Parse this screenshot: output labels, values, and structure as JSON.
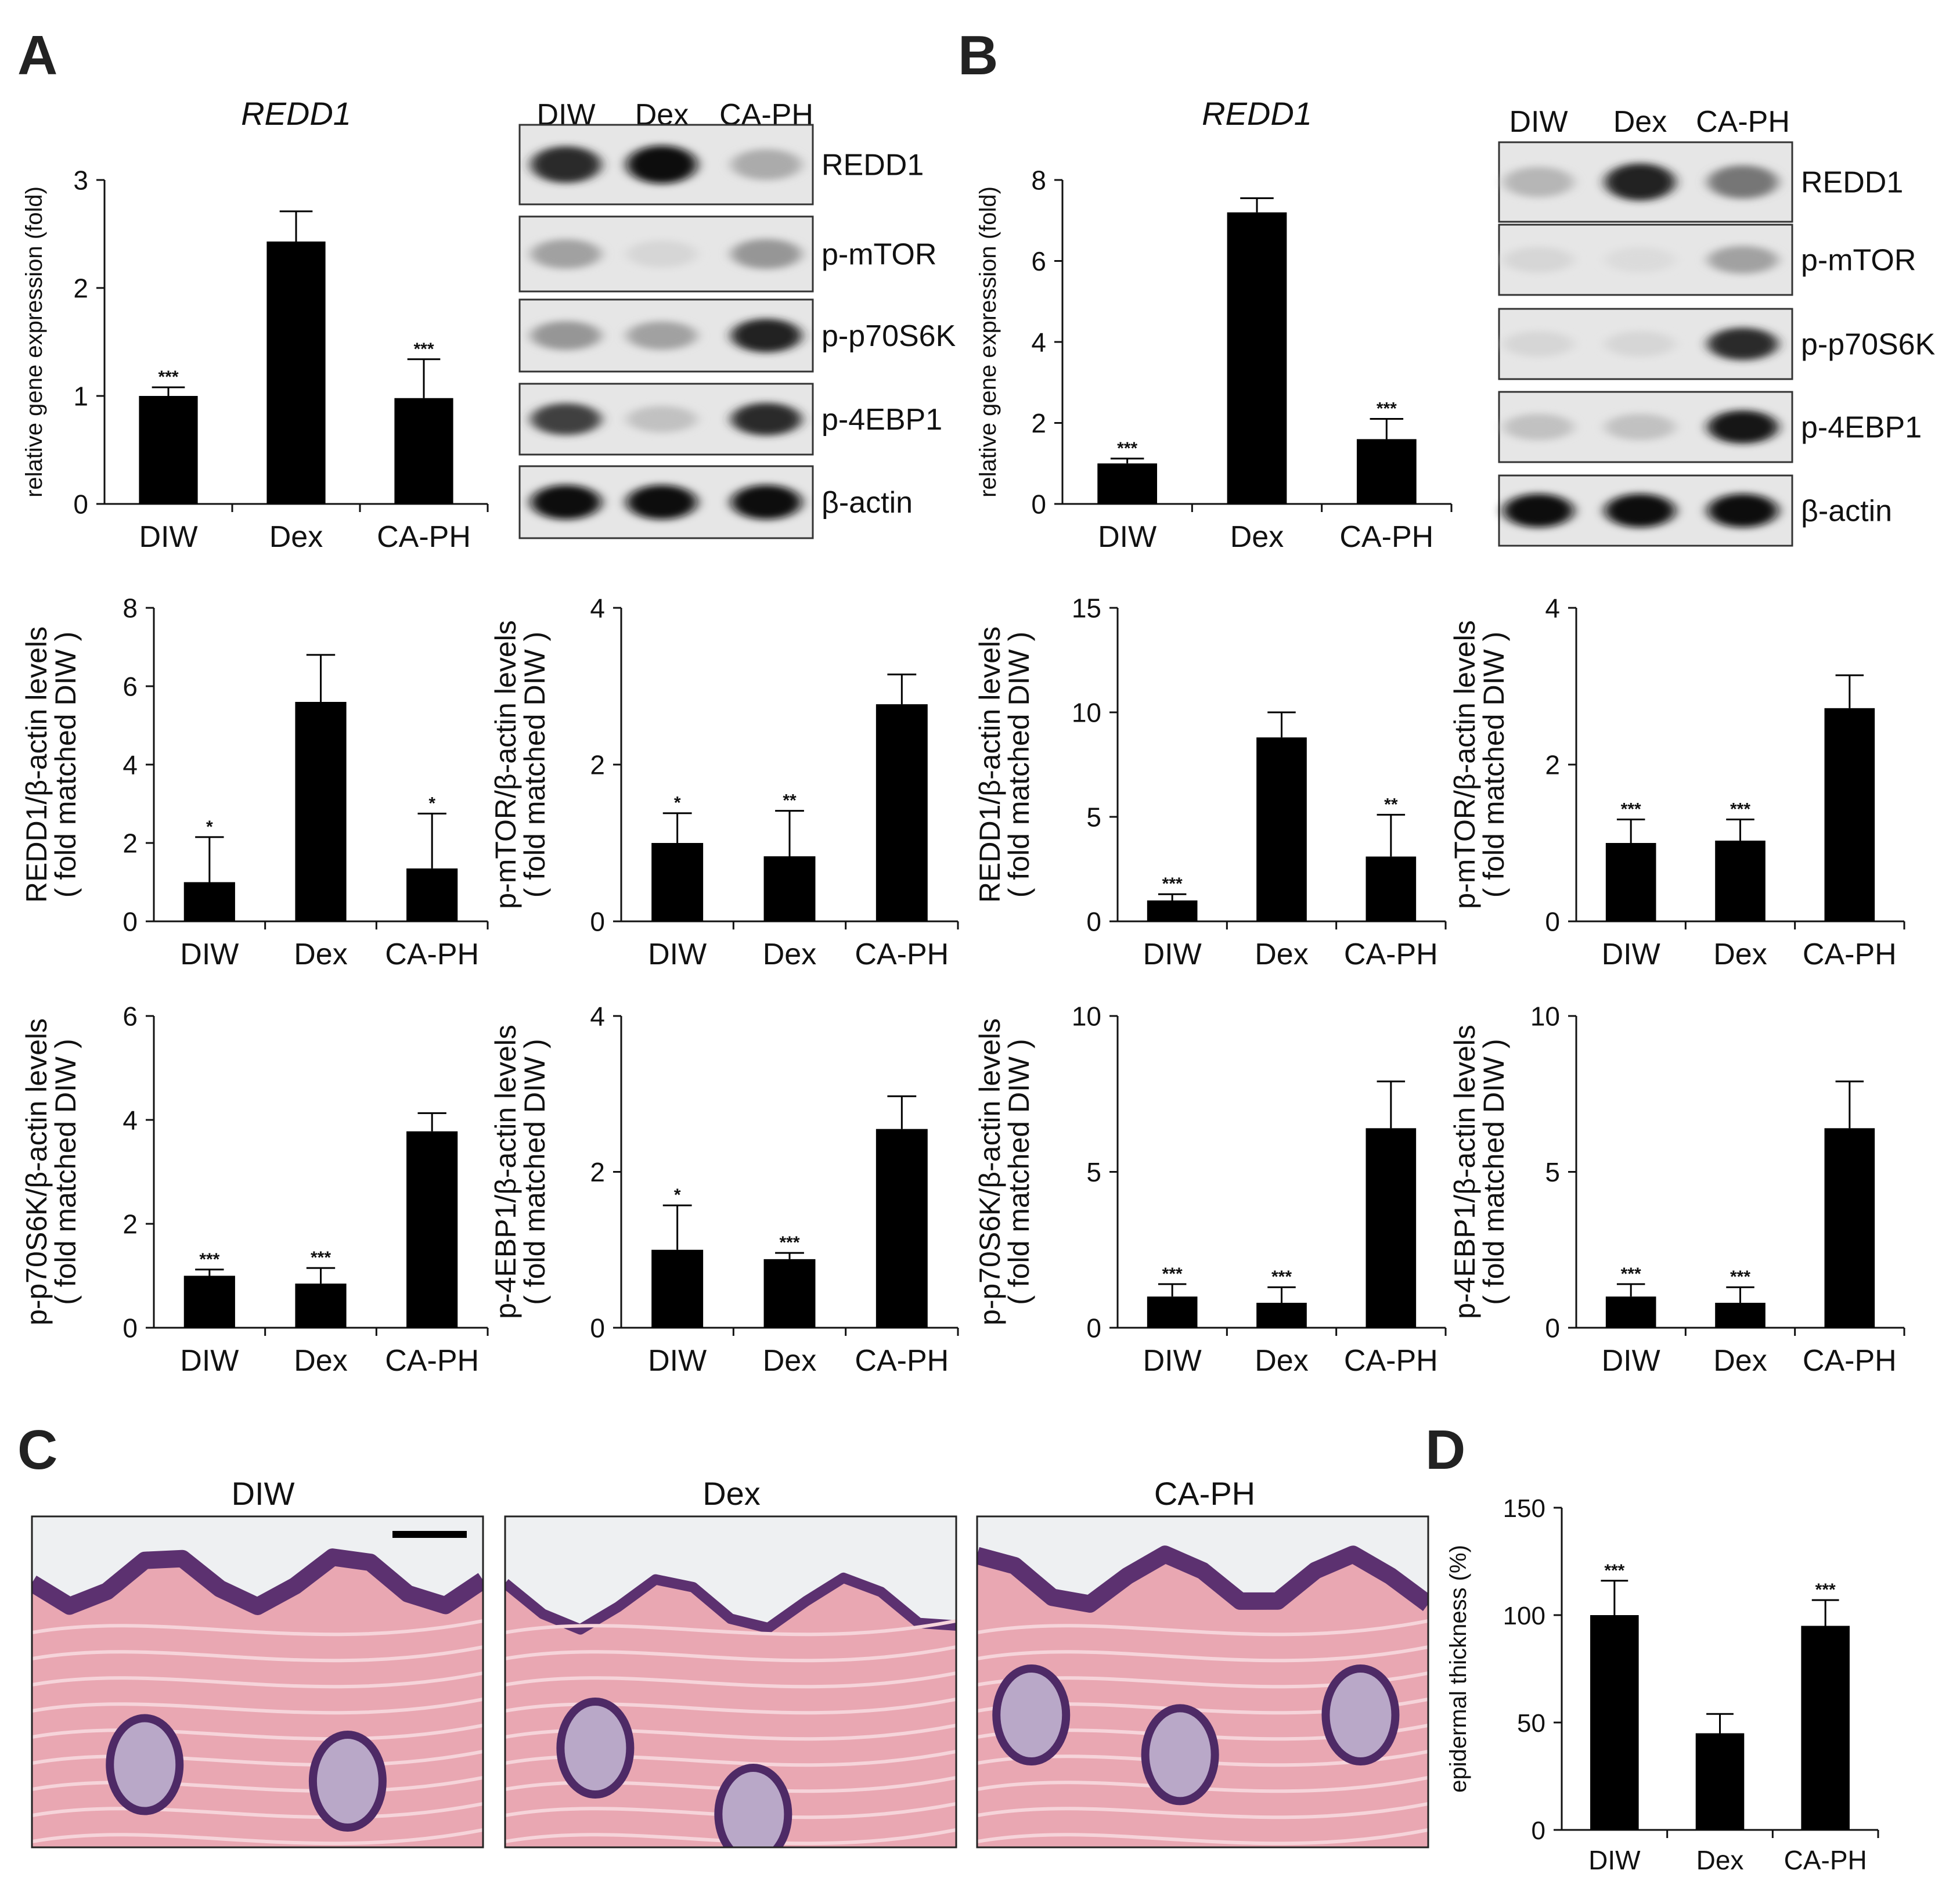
{
  "panel_labels": {
    "a": "A",
    "b": "B",
    "c": "C",
    "d": "D"
  },
  "blot_lanes": [
    "DIW",
    "Dex",
    "CA-PH"
  ],
  "blot_rows": [
    "REDD1",
    "p-mTOR",
    "p-p70S6K",
    "p-4EBP1",
    "β-actin"
  ],
  "blots": {
    "A": [
      [
        0.85,
        1.0,
        0.25
      ],
      [
        0.3,
        0.05,
        0.35
      ],
      [
        0.35,
        0.3,
        0.9
      ],
      [
        0.75,
        0.15,
        0.85
      ],
      [
        1.0,
        1.0,
        1.0
      ]
    ],
    "B": [
      [
        0.2,
        0.9,
        0.5
      ],
      [
        0.05,
        0.03,
        0.3
      ],
      [
        0.05,
        0.05,
        0.85
      ],
      [
        0.15,
        0.15,
        0.95
      ],
      [
        1.0,
        1.0,
        1.0
      ]
    ]
  },
  "histology": {
    "titles": [
      "DIW",
      "Dex",
      "CA-PH"
    ]
  },
  "chart_data": [
    {
      "id": "A-redd1-mrna",
      "type": "bar",
      "title": "REDD1",
      "ylabel": "relative gene expression (fold)",
      "ylabel2": "",
      "categories": [
        "DIW",
        "Dex",
        "CA-PH"
      ],
      "values": [
        1.0,
        2.43,
        0.98
      ],
      "errors": [
        0.08,
        0.28,
        0.36
      ],
      "sig": [
        "***",
        "",
        "***"
      ],
      "ylim": [
        0,
        3
      ],
      "ticks": [
        0,
        1,
        2,
        3
      ]
    },
    {
      "id": "B-redd1-mrna",
      "type": "bar",
      "title": "REDD1",
      "ylabel": "relative gene expression (fold)",
      "ylabel2": "",
      "categories": [
        "DIW",
        "Dex",
        "CA-PH"
      ],
      "values": [
        1.0,
        7.2,
        1.6
      ],
      "errors": [
        0.12,
        0.35,
        0.5
      ],
      "sig": [
        "***",
        "",
        "***"
      ],
      "ylim": [
        0,
        8
      ],
      "ticks": [
        0,
        2,
        4,
        6,
        8
      ]
    },
    {
      "id": "A-redd1-actin",
      "type": "bar",
      "title": "",
      "ylabel": "REDD1/β-actin levels",
      "ylabel2": "( fold matched DIW )",
      "categories": [
        "DIW",
        "Dex",
        "CA-PH"
      ],
      "values": [
        1.0,
        5.6,
        1.35
      ],
      "errors": [
        1.15,
        1.2,
        1.4
      ],
      "sig": [
        "*",
        "",
        "*"
      ],
      "ylim": [
        0,
        8
      ],
      "ticks": [
        0,
        2,
        4,
        6,
        8
      ]
    },
    {
      "id": "A-mtor-actin",
      "type": "bar",
      "title": "",
      "ylabel": "p-mTOR/β-actin levels",
      "ylabel2": "( fold matched DIW )",
      "categories": [
        "DIW",
        "Dex",
        "CA-PH"
      ],
      "values": [
        1.0,
        0.83,
        2.77
      ],
      "errors": [
        0.38,
        0.58,
        0.38
      ],
      "sig": [
        "*",
        "**",
        ""
      ],
      "ylim": [
        0,
        4
      ],
      "ticks": [
        0,
        2,
        4
      ]
    },
    {
      "id": "B-redd1-actin",
      "type": "bar",
      "title": "",
      "ylabel": "REDD1/β-actin levels",
      "ylabel2": "( fold matched DIW )",
      "categories": [
        "DIW",
        "Dex",
        "CA-PH"
      ],
      "values": [
        1.0,
        8.8,
        3.1
      ],
      "errors": [
        0.3,
        1.2,
        2.0
      ],
      "sig": [
        "***",
        "",
        "**"
      ],
      "ylim": [
        0,
        15
      ],
      "ticks": [
        0,
        5,
        10,
        15
      ]
    },
    {
      "id": "B-mtor-actin",
      "type": "bar",
      "title": "",
      "ylabel": "p-mTOR/β-actin levels",
      "ylabel2": "( fold matched DIW )",
      "categories": [
        "DIW",
        "Dex",
        "CA-PH"
      ],
      "values": [
        1.0,
        1.03,
        2.72
      ],
      "errors": [
        0.3,
        0.27,
        0.42
      ],
      "sig": [
        "***",
        "***",
        ""
      ],
      "ylim": [
        0,
        4
      ],
      "ticks": [
        0,
        2,
        4
      ]
    },
    {
      "id": "A-p70-actin",
      "type": "bar",
      "title": "",
      "ylabel": "p-p70S6K/β-actin levels",
      "ylabel2": "( fold matched DIW )",
      "categories": [
        "DIW",
        "Dex",
        "CA-PH"
      ],
      "values": [
        1.0,
        0.85,
        3.78
      ],
      "errors": [
        0.12,
        0.3,
        0.35
      ],
      "sig": [
        "***",
        "***",
        ""
      ],
      "ylim": [
        0,
        6
      ],
      "ticks": [
        0,
        2,
        4,
        6
      ]
    },
    {
      "id": "A-4ebp1-actin",
      "type": "bar",
      "title": "",
      "ylabel": "p-4EBP1/β-actin levels",
      "ylabel2": "( fold matched DIW )",
      "categories": [
        "DIW",
        "Dex",
        "CA-PH"
      ],
      "values": [
        1.0,
        0.88,
        2.55
      ],
      "errors": [
        0.57,
        0.08,
        0.42
      ],
      "sig": [
        "*",
        "***",
        ""
      ],
      "ylim": [
        0,
        4
      ],
      "ticks": [
        0,
        2,
        4
      ]
    },
    {
      "id": "B-p70-actin",
      "type": "bar",
      "title": "",
      "ylabel": "p-p70S6K/β-actin levels",
      "ylabel2": "( fold matched DIW )",
      "categories": [
        "DIW",
        "Dex",
        "CA-PH"
      ],
      "values": [
        1.0,
        0.8,
        6.4
      ],
      "errors": [
        0.4,
        0.5,
        1.5
      ],
      "sig": [
        "***",
        "***",
        ""
      ],
      "ylim": [
        0,
        10
      ],
      "ticks": [
        0,
        5,
        10
      ]
    },
    {
      "id": "B-4ebp1-actin",
      "type": "bar",
      "title": "",
      "ylabel": "p-4EBP1/β-actin levels",
      "ylabel2": "( fold matched DIW )",
      "categories": [
        "DIW",
        "Dex",
        "CA-PH"
      ],
      "values": [
        1.0,
        0.8,
        6.4
      ],
      "errors": [
        0.4,
        0.5,
        1.5
      ],
      "sig": [
        "***",
        "***",
        ""
      ],
      "ylim": [
        0,
        10
      ],
      "ticks": [
        0,
        5,
        10
      ]
    },
    {
      "id": "D-epidermal",
      "type": "bar",
      "title": "",
      "ylabel": "epidermal thickness (%)",
      "ylabel2": "",
      "categories": [
        "DIW",
        "Dex",
        "CA-PH"
      ],
      "values": [
        100,
        45,
        95
      ],
      "errors": [
        16,
        9,
        12
      ],
      "sig": [
        "***",
        "",
        "***"
      ],
      "ylim": [
        0,
        150
      ],
      "ticks": [
        0,
        50,
        100,
        150
      ]
    }
  ]
}
